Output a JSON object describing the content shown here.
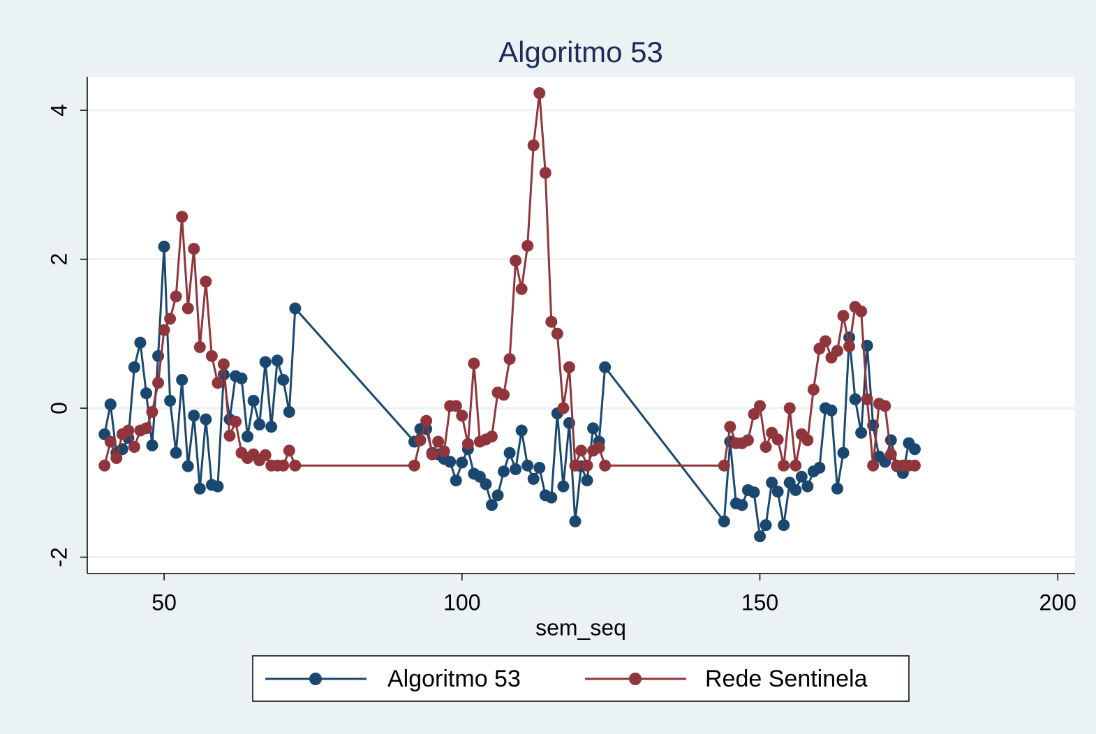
{
  "chart_data": {
    "type": "line",
    "title": "Algoritmo 53",
    "xlabel": "sem_seq",
    "x": [
      40,
      41,
      42,
      43,
      44,
      45,
      46,
      47,
      48,
      49,
      50,
      51,
      52,
      53,
      54,
      55,
      56,
      57,
      58,
      59,
      60,
      61,
      62,
      63,
      64,
      65,
      66,
      67,
      68,
      69,
      70,
      71,
      72,
      92,
      93,
      94,
      95,
      96,
      97,
      98,
      99,
      100,
      101,
      102,
      103,
      104,
      105,
      106,
      107,
      108,
      109,
      110,
      111,
      112,
      113,
      114,
      115,
      116,
      117,
      118,
      119,
      120,
      121,
      122,
      123,
      124,
      144,
      145,
      146,
      147,
      148,
      149,
      150,
      151,
      152,
      153,
      154,
      155,
      156,
      157,
      158,
      159,
      160,
      161,
      162,
      163,
      164,
      165,
      166,
      167,
      168,
      169,
      170,
      171,
      172,
      173,
      174,
      175,
      176
    ],
    "series": [
      {
        "name": "Algoritmo 53",
        "color": "#1a476f",
        "values": [
          -0.35,
          0.05,
          -0.6,
          -0.55,
          -0.4,
          0.55,
          0.88,
          0.2,
          -0.5,
          0.7,
          2.17,
          0.1,
          -0.6,
          0.38,
          -0.78,
          -0.1,
          -1.08,
          -0.15,
          -1.03,
          -1.05,
          0.45,
          -0.15,
          0.43,
          0.4,
          -0.38,
          0.1,
          -0.22,
          0.62,
          -0.25,
          0.64,
          0.38,
          -0.05,
          1.34,
          -0.45,
          -0.28,
          -0.28,
          -0.6,
          -0.62,
          -0.68,
          -0.72,
          -0.97,
          -0.73,
          -0.55,
          -0.88,
          -0.92,
          -1.02,
          -1.3,
          -1.17,
          -0.85,
          -0.6,
          -0.82,
          -0.3,
          -0.77,
          -0.95,
          -0.8,
          -1.17,
          -1.2,
          -0.07,
          -1.05,
          -0.2,
          -1.52,
          -0.78,
          -0.97,
          -0.27,
          -0.45,
          0.55,
          -1.52,
          -0.45,
          -1.28,
          -1.3,
          -1.1,
          -1.13,
          -1.72,
          -1.57,
          -1.0,
          -1.12,
          -1.57,
          -1.0,
          -1.1,
          -0.92,
          -1.05,
          -0.85,
          -0.8,
          0.0,
          -0.03,
          -1.08,
          -0.6,
          0.95,
          0.12,
          -0.33,
          0.84,
          -0.23,
          -0.65,
          -0.72,
          -0.43,
          -0.78,
          -0.87,
          -0.47,
          -0.55
        ]
      },
      {
        "name": "Rede Sentinela",
        "color": "#90353b",
        "values": [
          -0.77,
          -0.45,
          -0.67,
          -0.35,
          -0.3,
          -0.52,
          -0.3,
          -0.27,
          -0.05,
          0.34,
          1.05,
          1.2,
          1.5,
          2.57,
          1.34,
          2.14,
          0.82,
          1.7,
          0.7,
          0.34,
          0.59,
          -0.37,
          -0.18,
          -0.6,
          -0.67,
          -0.62,
          -0.7,
          -0.63,
          -0.77,
          -0.77,
          -0.77,
          -0.57,
          -0.77,
          -0.77,
          -0.43,
          -0.17,
          -0.62,
          -0.45,
          -0.58,
          0.03,
          0.03,
          -0.1,
          -0.48,
          0.6,
          -0.45,
          -0.42,
          -0.38,
          0.21,
          0.18,
          0.66,
          1.98,
          1.6,
          2.18,
          3.53,
          4.23,
          3.16,
          1.16,
          1.0,
          0.0,
          0.55,
          -0.77,
          -0.57,
          -0.77,
          -0.57,
          -0.53,
          -0.77,
          -0.77,
          -0.25,
          -0.47,
          -0.47,
          -0.43,
          -0.08,
          0.03,
          -0.52,
          -0.33,
          -0.42,
          -0.77,
          0.0,
          -0.77,
          -0.35,
          -0.43,
          0.25,
          0.8,
          0.9,
          0.68,
          0.77,
          1.24,
          0.83,
          1.36,
          1.3,
          0.12,
          -0.77,
          0.06,
          0.03,
          -0.62,
          -0.77,
          -0.77,
          -0.77,
          -0.77
        ]
      }
    ],
    "xlim": [
      37.1,
      202.9
    ],
    "xticks": [
      50,
      100,
      150,
      200
    ],
    "ylim": [
      -2.22,
      4.45
    ],
    "yticks": [
      -2,
      0,
      2,
      4
    ],
    "grid": true,
    "legend": "bottom"
  }
}
